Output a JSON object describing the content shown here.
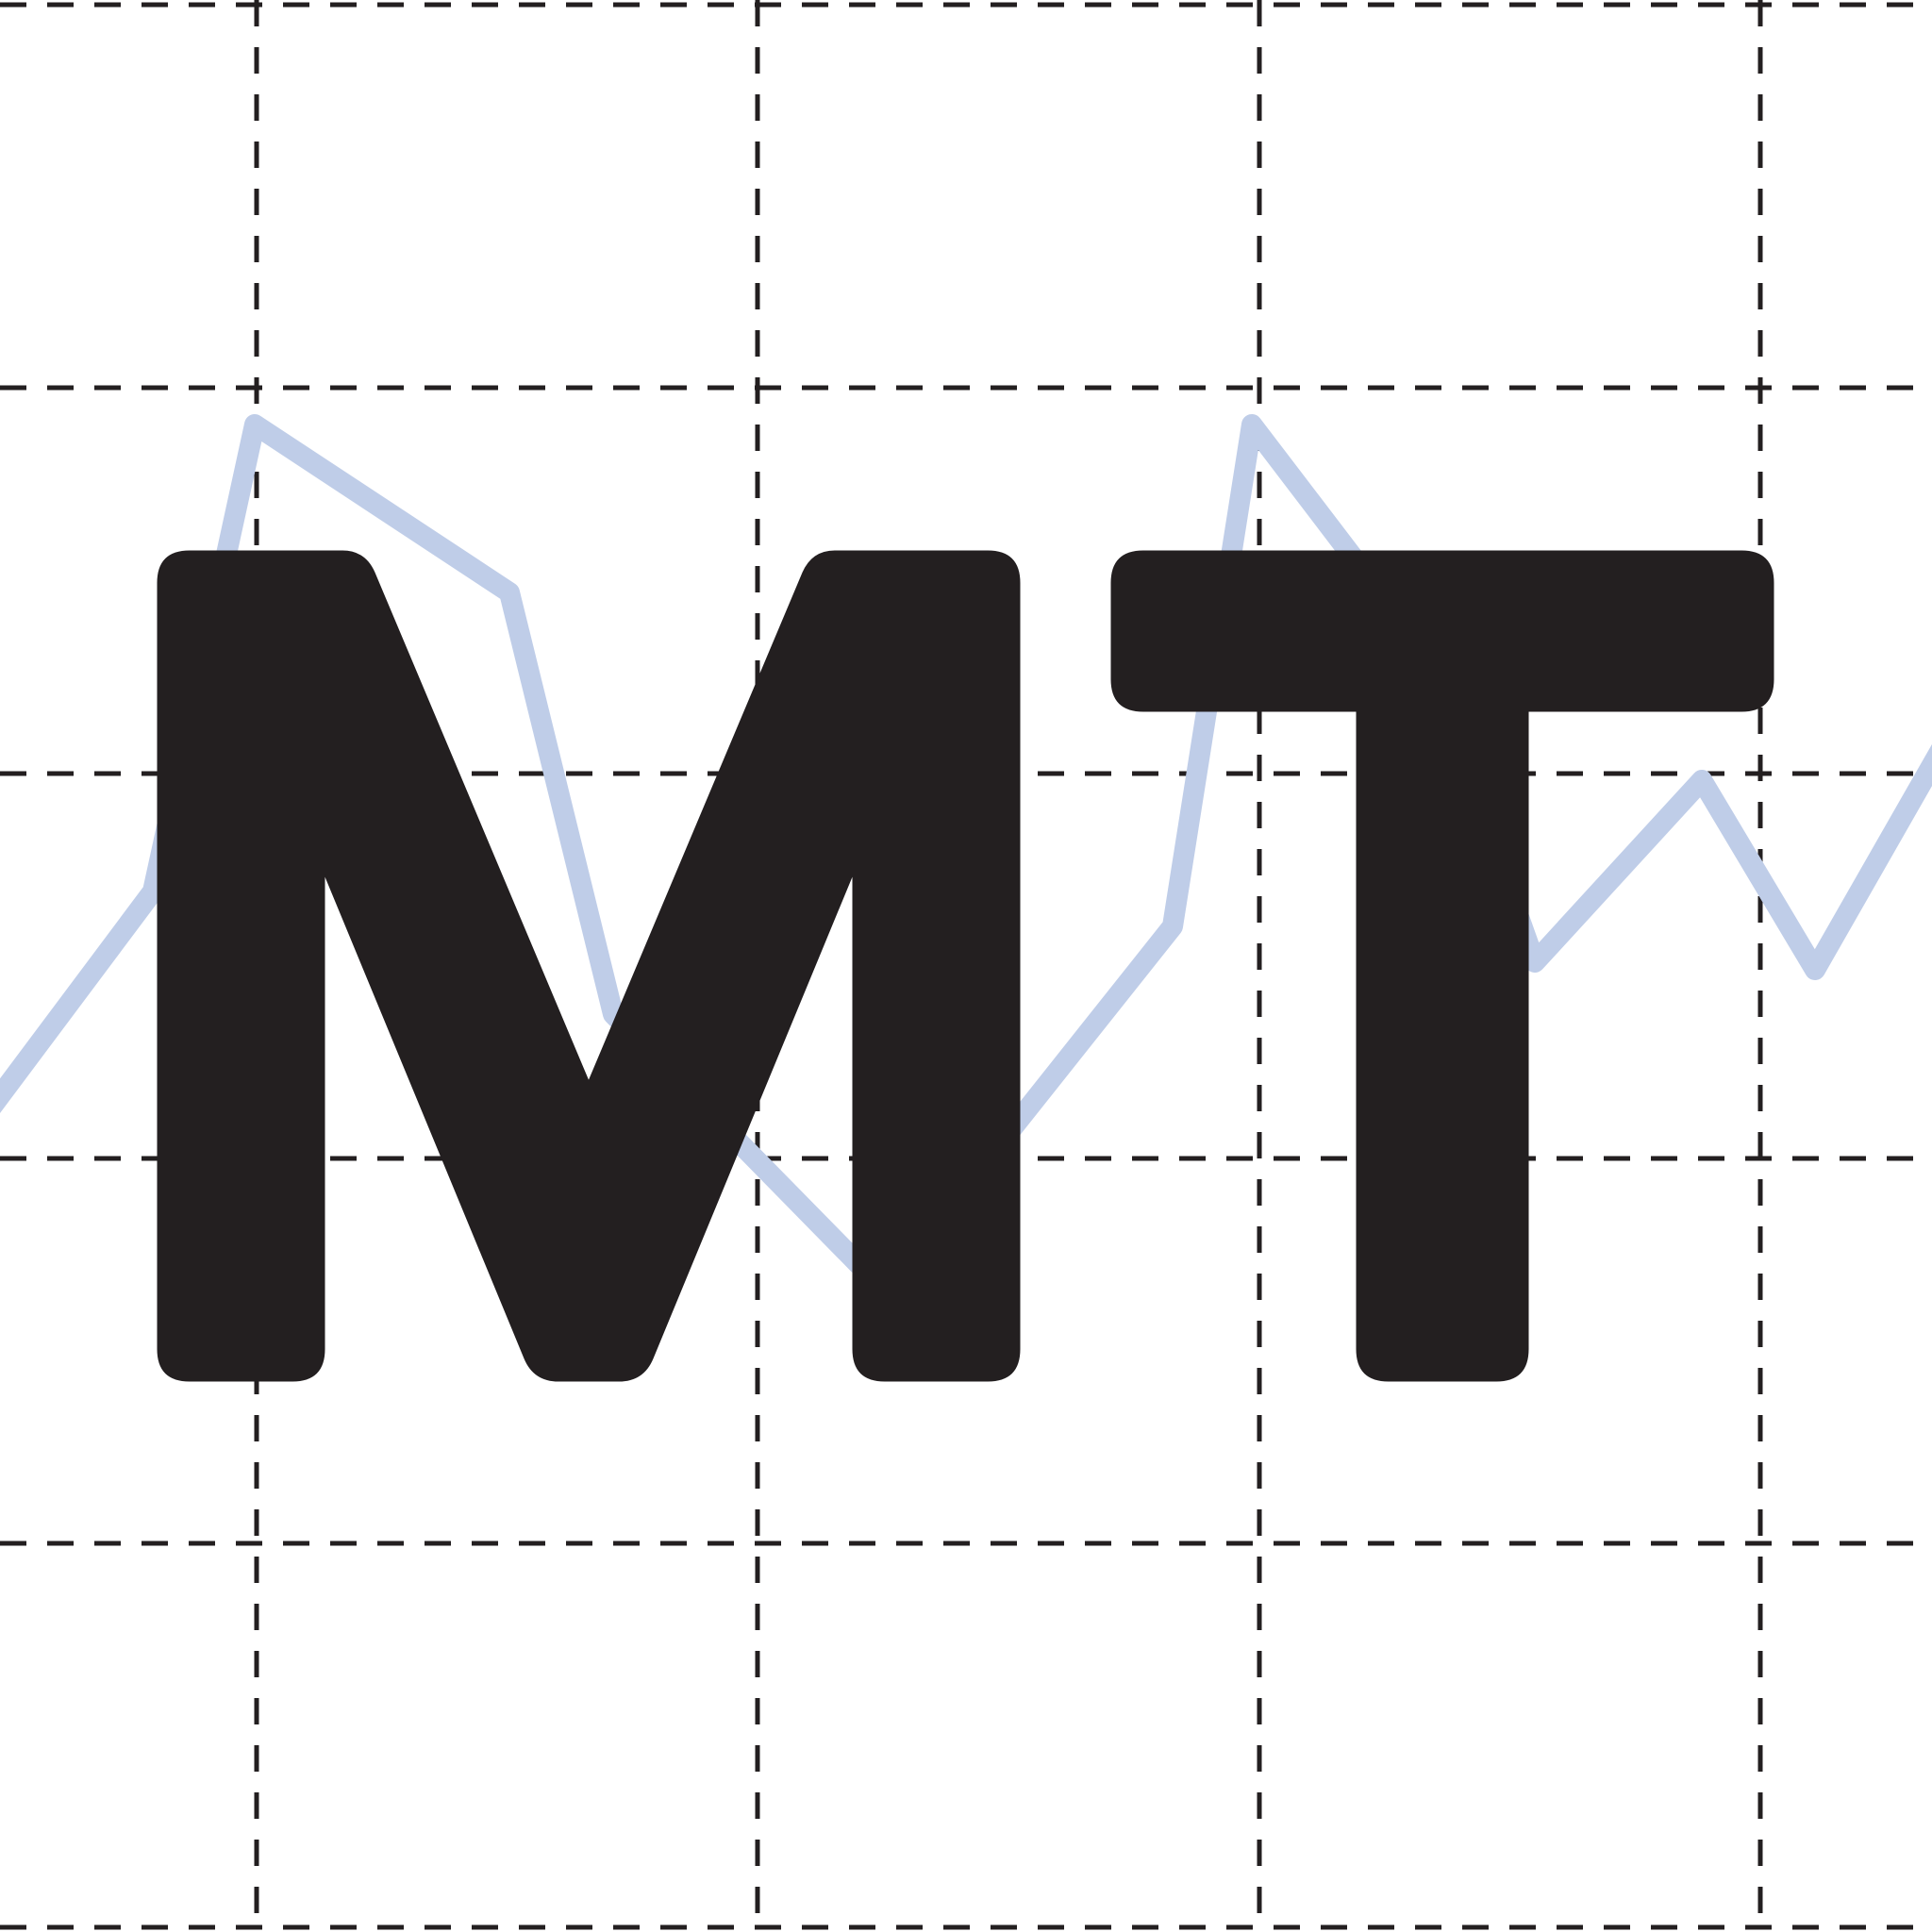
{
  "logo": {
    "text": "MT",
    "letters": [
      "M",
      "T"
    ]
  },
  "colors": {
    "background": "#ffffff",
    "grid": "#231f20",
    "trend": "#bfcde8",
    "letters": "#231f20"
  },
  "icons": {
    "grid": "dashed-grid-icon",
    "trend": "trend-line-icon"
  }
}
